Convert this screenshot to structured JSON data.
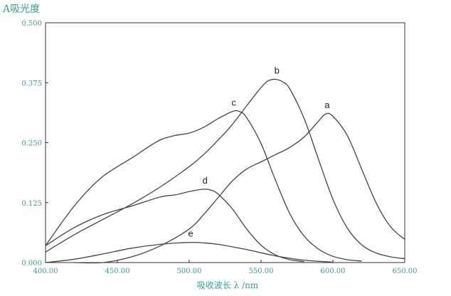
{
  "chart_data": {
    "type": "line",
    "ylabel": "A吸光度",
    "xlabel": "吸收波长 λ /nm",
    "xlim": [
      400,
      650
    ],
    "ylim": [
      0,
      0.5
    ],
    "x_ticks": [
      "400.00",
      "450.00",
      "500.00",
      "550.00",
      "600.00",
      "650.00"
    ],
    "y_ticks": [
      "0.000",
      "0.125",
      "0.250",
      "0.375",
      "0.500"
    ],
    "grid": false,
    "series": [
      {
        "name": "a",
        "x": [
          420,
          440,
          460,
          480,
          500,
          510,
          520,
          530,
          540,
          550,
          560,
          570,
          580,
          590,
          595,
          600,
          610,
          620,
          630,
          640,
          650
        ],
        "y": [
          0,
          0,
          0.012,
          0.035,
          0.07,
          0.1,
          0.135,
          0.17,
          0.195,
          0.21,
          0.225,
          0.24,
          0.262,
          0.295,
          0.31,
          0.305,
          0.265,
          0.195,
          0.125,
          0.075,
          0.048
        ]
      },
      {
        "name": "b",
        "x": [
          400,
          420,
          440,
          460,
          480,
          500,
          510,
          520,
          530,
          540,
          550,
          555,
          560,
          565,
          570,
          580,
          590,
          600,
          610,
          620,
          630,
          640,
          650
        ],
        "y": [
          0.022,
          0.058,
          0.09,
          0.122,
          0.158,
          0.2,
          0.225,
          0.255,
          0.288,
          0.327,
          0.365,
          0.379,
          0.382,
          0.377,
          0.362,
          0.3,
          0.215,
          0.132,
          0.072,
          0.037,
          0.02,
          0.012,
          0.008
        ]
      },
      {
        "name": "c",
        "x": [
          400,
          410,
          420,
          430,
          440,
          450,
          460,
          470,
          480,
          490,
          500,
          510,
          520,
          530,
          535,
          540,
          550,
          560,
          570,
          580,
          590,
          600,
          610,
          620
        ],
        "y": [
          0.035,
          0.078,
          0.118,
          0.152,
          0.18,
          0.2,
          0.218,
          0.238,
          0.256,
          0.265,
          0.27,
          0.282,
          0.3,
          0.315,
          0.315,
          0.302,
          0.248,
          0.172,
          0.102,
          0.055,
          0.028,
          0.013,
          0.006,
          0.003
        ]
      },
      {
        "name": "d",
        "x": [
          400,
          420,
          440,
          460,
          480,
          490,
          500,
          510,
          515,
          520,
          530,
          540,
          550,
          560,
          570,
          580
        ],
        "y": [
          0.035,
          0.073,
          0.1,
          0.118,
          0.137,
          0.141,
          0.148,
          0.153,
          0.151,
          0.143,
          0.112,
          0.07,
          0.036,
          0.016,
          0.006,
          0.002
        ]
      },
      {
        "name": "e",
        "x": [
          400,
          420,
          440,
          460,
          480,
          500,
          510,
          520,
          540,
          560,
          580,
          600
        ],
        "y": [
          0,
          0.007,
          0.018,
          0.03,
          0.038,
          0.042,
          0.041,
          0.038,
          0.027,
          0.014,
          0.005,
          0.001
        ]
      }
    ]
  }
}
